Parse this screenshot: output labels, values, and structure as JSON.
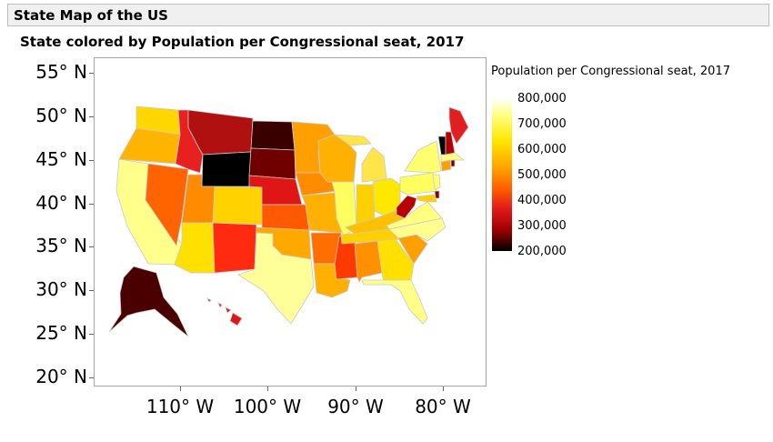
{
  "header": {
    "title": "State Map of the US"
  },
  "chart_data": {
    "type": "choropleth-map",
    "title": "State colored by Population per Congressional seat, 2017",
    "legend": {
      "title": "Population per Congressional seat, 2017",
      "placement": "right",
      "labels": [
        "800,000",
        "700,000",
        "600,000",
        "500,000",
        "400,000",
        "300,000",
        "200,000"
      ],
      "min": 200000,
      "max": 800000
    },
    "y_axis": {
      "ticks": [
        "55° N",
        "50° N",
        "45° N",
        "40° N",
        "35° N",
        "30° N",
        "25° N",
        "20° N"
      ],
      "range": [
        19,
        57
      ]
    },
    "x_axis": {
      "ticks": [
        "110° W",
        "100° W",
        "90° W",
        "80° W"
      ],
      "range": [
        -121,
        -75
      ]
    },
    "colors": {
      "wa": "#ffd700",
      "or": "#ffb400",
      "ca": "#ffff8c",
      "nv": "#ff6400",
      "id": "#e82020",
      "mt": "#b01010",
      "wy": "#000000",
      "ut": "#ff8c00",
      "az": "#ffe000",
      "co": "#ffd200",
      "nm": "#ff2a10",
      "nd": "#3a0000",
      "sd": "#700000",
      "ne": "#e01515",
      "ks": "#ff5a00",
      "ok": "#ffa800",
      "tx": "#ffff9a",
      "mn": "#ffa000",
      "ia": "#ff8c00",
      "mo": "#ffb000",
      "ar": "#ff6e00",
      "la": "#ffb000",
      "wi": "#ffb000",
      "il": "#ffff60",
      "ms": "#ff3a00",
      "mi": "#ffe44a",
      "in": "#ffd000",
      "oh": "#ffe800",
      "ky": "#ffc000",
      "tn": "#ffd000",
      "al": "#ff9000",
      "ga": "#ffe000",
      "fl": "#ffff88",
      "sc": "#ffa000",
      "nc": "#ffff90",
      "va": "#ffff80",
      "wv": "#b80000",
      "pa": "#ffff60",
      "ny": "#ffff70",
      "vt": "#000000",
      "nh": "#b00000",
      "me": "#e02020",
      "ma": "#ffff80",
      "ri": "#700000",
      "ct": "#ffa000",
      "nj": "#ffff70",
      "de": "#8a0000",
      "md": "#ffd000",
      "ak": "#4a0000",
      "hi": "#e01515"
    }
  }
}
